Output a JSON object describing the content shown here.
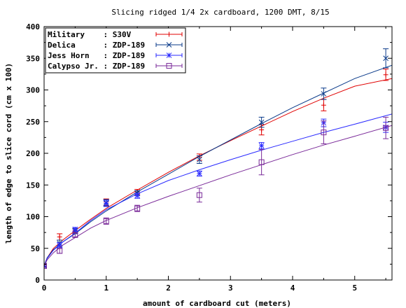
{
  "chart_data": {
    "type": "scatter",
    "title": "Slicing ridged 1/4 2x cardboard, 1200 DMT, 8/15",
    "xlabel": "amount of cardboard cut (meters)",
    "ylabel": "length of edge to slice cord (cm x 100)",
    "xlim": [
      0,
      5.6
    ],
    "ylim": [
      0,
      400
    ],
    "x_ticks": [
      "0",
      "1",
      "2",
      "3",
      "4",
      "5"
    ],
    "y_ticks": [
      "0",
      "50",
      "100",
      "150",
      "200",
      "250",
      "300",
      "350",
      "400"
    ],
    "grid": false,
    "legend_position": "top-left",
    "fit_lines": true,
    "series": [
      {
        "name": "Military    : S30V",
        "color": "#e00000",
        "marker": "plus",
        "points": [
          {
            "x": 0,
            "y": 22,
            "err": 2
          },
          {
            "x": 0.25,
            "y": 68,
            "err": 5
          },
          {
            "x": 0.5,
            "y": 78,
            "err": 3
          },
          {
            "x": 1,
            "y": 123,
            "err": 5
          },
          {
            "x": 1.5,
            "y": 139,
            "err": 4
          },
          {
            "x": 2.5,
            "y": 194,
            "err": 5
          },
          {
            "x": 3.5,
            "y": 237,
            "err": 8
          },
          {
            "x": 4.5,
            "y": 276,
            "err": 9
          },
          {
            "x": 5.5,
            "y": 324,
            "err": 9
          }
        ],
        "fit": [
          [
            0,
            22
          ],
          [
            0.05,
            35
          ],
          [
            0.15,
            50
          ],
          [
            0.3,
            63
          ],
          [
            0.5,
            78
          ],
          [
            0.75,
            96
          ],
          [
            1,
            113
          ],
          [
            1.5,
            142
          ],
          [
            2,
            170
          ],
          [
            2.5,
            196
          ],
          [
            3,
            220
          ],
          [
            3.5,
            243
          ],
          [
            4,
            266
          ],
          [
            4.5,
            287
          ],
          [
            5,
            306
          ],
          [
            5.6,
            318
          ]
        ]
      },
      {
        "name": "Delica      : ZDP-189",
        "color": "#0a3a8a",
        "marker": "cross",
        "points": [
          {
            "x": 0,
            "y": 23,
            "err": 2
          },
          {
            "x": 0.25,
            "y": 58,
            "err": 5
          },
          {
            "x": 0.5,
            "y": 77,
            "err": 4
          },
          {
            "x": 1,
            "y": 122,
            "err": 5
          },
          {
            "x": 1.5,
            "y": 137,
            "err": 4
          },
          {
            "x": 2.5,
            "y": 190,
            "err": 6
          },
          {
            "x": 3.5,
            "y": 249,
            "err": 8
          },
          {
            "x": 4.5,
            "y": 294,
            "err": 9
          },
          {
            "x": 5.5,
            "y": 350,
            "err": 15
          }
        ],
        "fit": [
          [
            0,
            23
          ],
          [
            0.05,
            35
          ],
          [
            0.15,
            48
          ],
          [
            0.3,
            60
          ],
          [
            0.5,
            73
          ],
          [
            0.75,
            92
          ],
          [
            1,
            109
          ],
          [
            1.5,
            139
          ],
          [
            2,
            167
          ],
          [
            2.5,
            195
          ],
          [
            3,
            221
          ],
          [
            3.5,
            247
          ],
          [
            4,
            272
          ],
          [
            4.5,
            295
          ],
          [
            5,
            318
          ],
          [
            5.6,
            339
          ]
        ]
      },
      {
        "name": "Jess Horn   : ZDP-189",
        "color": "#2a2aff",
        "marker": "star",
        "points": [
          {
            "x": 0,
            "y": 22,
            "err": 2
          },
          {
            "x": 0.25,
            "y": 55,
            "err": 4
          },
          {
            "x": 0.5,
            "y": 80,
            "err": 3
          },
          {
            "x": 1,
            "y": 121,
            "err": 5
          },
          {
            "x": 1.5,
            "y": 133,
            "err": 4
          },
          {
            "x": 2.5,
            "y": 168,
            "err": 4
          },
          {
            "x": 3.5,
            "y": 212,
            "err": 5
          },
          {
            "x": 4.5,
            "y": 248,
            "err": 6
          },
          {
            "x": 5.5,
            "y": 241,
            "err": 8
          }
        ],
        "fit": [
          [
            0,
            22
          ],
          [
            0.05,
            34
          ],
          [
            0.15,
            47
          ],
          [
            0.3,
            60
          ],
          [
            0.5,
            74
          ],
          [
            0.75,
            94
          ],
          [
            1,
            111
          ],
          [
            1.5,
            136
          ],
          [
            2,
            157
          ],
          [
            2.5,
            174
          ],
          [
            3,
            190
          ],
          [
            3.5,
            205
          ],
          [
            4,
            219
          ],
          [
            4.5,
            233
          ],
          [
            5,
            246
          ],
          [
            5.6,
            262
          ]
        ]
      },
      {
        "name": "Calypso Jr. : ZDP-189",
        "color": "#7a2a99",
        "marker": "square",
        "points": [
          {
            "x": 0,
            "y": 22,
            "err": 2
          },
          {
            "x": 0.25,
            "y": 46,
            "err": 4
          },
          {
            "x": 0.5,
            "y": 71,
            "err": 3
          },
          {
            "x": 1,
            "y": 93,
            "err": 5
          },
          {
            "x": 1.5,
            "y": 113,
            "err": 5
          },
          {
            "x": 2.5,
            "y": 134,
            "err": 11
          },
          {
            "x": 3.5,
            "y": 186,
            "err": 20
          },
          {
            "x": 4.5,
            "y": 233,
            "err": 18
          },
          {
            "x": 5.5,
            "y": 240,
            "err": 17
          }
        ],
        "fit": [
          [
            0,
            22
          ],
          [
            0.05,
            32
          ],
          [
            0.15,
            43
          ],
          [
            0.3,
            55
          ],
          [
            0.5,
            67
          ],
          [
            0.75,
            82
          ],
          [
            1,
            94
          ],
          [
            1.5,
            114
          ],
          [
            2,
            132
          ],
          [
            2.5,
            149
          ],
          [
            3,
            166
          ],
          [
            3.5,
            182
          ],
          [
            4,
            198
          ],
          [
            4.5,
            213
          ],
          [
            5,
            227
          ],
          [
            5.6,
            244
          ]
        ]
      }
    ]
  }
}
